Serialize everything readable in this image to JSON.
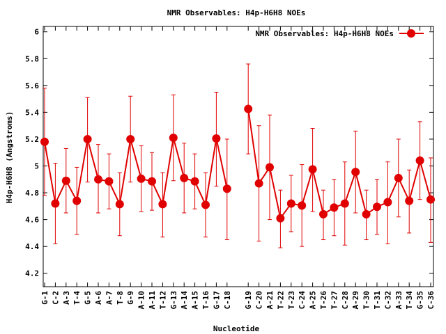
{
  "chart_data": {
    "type": "line",
    "title": "NMR Observables: H4p-H6H8 NOEs",
    "xlabel": "Nucleotide",
    "ylabel": "H4p-H6H8 (Angstroms)",
    "ylim": [
      4.1,
      6.04
    ],
    "yticks": [
      "4.2",
      "4.4",
      "4.6",
      "4.8",
      "5",
      "5.2",
      "5.4",
      "5.6",
      "5.8",
      "6"
    ],
    "legend_position": "top-right",
    "color": "#e00000",
    "series": [
      {
        "name": "NMR Observables: H4p-H6H8 NOEs"
      }
    ],
    "categories": [
      "G-1",
      "C-2",
      "A-3",
      "T-4",
      "G-5",
      "A-6",
      "A-7",
      "T-8",
      "G-9",
      "A-10",
      "A-11",
      "T-12",
      "G-13",
      "A-14",
      "A-15",
      "T-16",
      "G-17",
      "C-18",
      "G-19",
      "C-20",
      "A-21",
      "T-22",
      "T-23",
      "C-24",
      "A-25",
      "T-26",
      "T-27",
      "C-28",
      "A-29",
      "T-30",
      "T-31",
      "C-32",
      "A-33",
      "T-34",
      "G-35",
      "C-36"
    ],
    "segments": [
      {
        "categories": [
          "G-1",
          "C-2",
          "A-3",
          "T-4",
          "G-5",
          "A-6",
          "A-7",
          "T-8",
          "G-9",
          "A-10",
          "A-11",
          "T-12",
          "G-13",
          "A-14",
          "A-15",
          "T-16",
          "G-17",
          "C-18"
        ],
        "values": [
          5.18,
          4.72,
          4.89,
          4.74,
          5.2,
          4.9,
          4.885,
          4.715,
          5.2,
          4.905,
          4.885,
          4.715,
          5.21,
          4.91,
          4.885,
          4.71,
          5.205,
          4.83
        ],
        "lower": [
          4.78,
          4.42,
          4.65,
          4.49,
          4.88,
          4.65,
          4.68,
          4.48,
          4.88,
          4.66,
          4.67,
          4.47,
          4.89,
          4.65,
          4.68,
          4.47,
          4.85,
          4.45
        ],
        "upper": [
          5.58,
          5.02,
          5.13,
          4.99,
          5.51,
          5.16,
          5.09,
          4.95,
          5.52,
          5.15,
          5.1,
          4.95,
          5.53,
          5.17,
          5.09,
          4.95,
          5.55,
          5.2
        ]
      },
      {
        "categories": [
          "G-19",
          "C-20",
          "A-21",
          "T-22",
          "T-23",
          "C-24",
          "A-25",
          "T-26",
          "T-27",
          "C-28",
          "A-29",
          "T-30",
          "T-31",
          "C-32",
          "A-33",
          "T-34",
          "G-35",
          "C-36"
        ],
        "values": [
          5.425,
          4.87,
          4.99,
          4.61,
          4.72,
          4.705,
          4.975,
          4.64,
          4.69,
          4.72,
          4.955,
          4.64,
          4.695,
          4.73,
          4.91,
          4.74,
          5.04,
          4.75
        ],
        "lower": [
          5.09,
          4.44,
          4.6,
          4.39,
          4.51,
          4.4,
          4.66,
          4.45,
          4.48,
          4.41,
          4.65,
          4.45,
          4.49,
          4.42,
          4.62,
          4.5,
          4.75,
          4.43
        ],
        "upper": [
          5.76,
          5.3,
          5.38,
          4.82,
          4.93,
          5.01,
          5.28,
          4.82,
          4.9,
          5.03,
          5.26,
          4.82,
          4.9,
          5.03,
          5.2,
          4.97,
          5.33,
          5.06
        ]
      }
    ]
  }
}
